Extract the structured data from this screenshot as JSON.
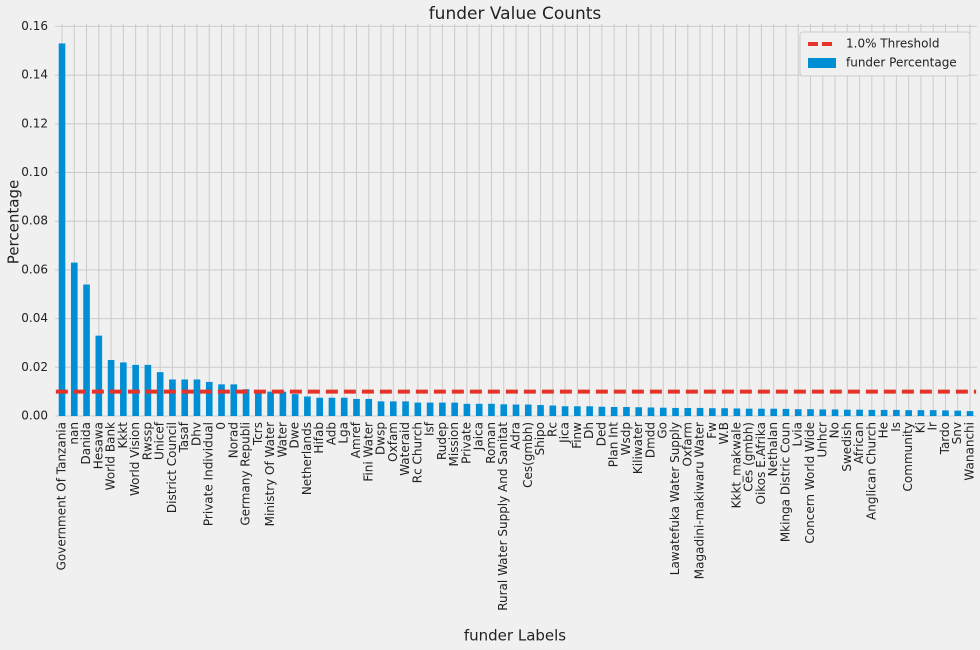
{
  "chart_data": {
    "type": "bar",
    "title": "funder Value Counts",
    "x_label": "funder Labels",
    "y_label": "Percentage",
    "categories": [
      "Government Of Tanzania",
      "nan",
      "Danida",
      "Hesawa",
      "World Bank",
      "Kkkt",
      "World Vision",
      "Rwssp",
      "Unicef",
      "District Council",
      "Tasaf",
      "Dhv",
      "Private Individual",
      "0",
      "Norad",
      "Germany Republi",
      "Tcrs",
      "Ministry Of Water",
      "Water",
      "Dwe",
      "Netherlands",
      "Hifab",
      "Adb",
      "Lga",
      "Amref",
      "Fini Water",
      "Dwsp",
      "Oxfam",
      "Wateraid",
      "Rc Church",
      "Isf",
      "Rudep",
      "Mission",
      "Private",
      "Jaica",
      "Roman",
      "Rural Water Supply And Sanitat",
      "Adra",
      "Ces(gmbh)",
      "Shipo",
      "Rc",
      "Jica",
      "Finw",
      "Dh",
      "Ded",
      "Plan Int",
      "Wsdp",
      "Kiliwater",
      "Dmdd",
      "Go",
      "Lawatefuka Water Supply",
      "Oxfarm",
      "Magadini-makiwaru Water",
      "Fw",
      "W.B",
      "Kkkt_makwale",
      "Ces (gmbh)",
      "Oikos E.Afrika",
      "Nethalan",
      "Mkinga Distric Coun",
      "Lvia",
      "Concern World Wide",
      "Unhcr",
      "No",
      "Swedish",
      "African",
      "Anglican Church",
      "He",
      "Is",
      "Community",
      "Ki",
      "Ir",
      "Tardo",
      "Snv",
      "Wananchi"
    ],
    "series": [
      {
        "name": "funder Percentage",
        "color": "#008fd5",
        "values": [
          0.153,
          0.063,
          0.054,
          0.033,
          0.023,
          0.022,
          0.021,
          0.021,
          0.018,
          0.015,
          0.015,
          0.015,
          0.014,
          0.013,
          0.013,
          0.011,
          0.01,
          0.01,
          0.01,
          0.009,
          0.008,
          0.0075,
          0.0075,
          0.0075,
          0.007,
          0.007,
          0.006,
          0.006,
          0.006,
          0.0055,
          0.0055,
          0.0055,
          0.0055,
          0.005,
          0.005,
          0.005,
          0.0048,
          0.0047,
          0.0047,
          0.0045,
          0.0043,
          0.004,
          0.004,
          0.004,
          0.0038,
          0.0037,
          0.0037,
          0.0036,
          0.0035,
          0.0034,
          0.0033,
          0.0033,
          0.0033,
          0.0032,
          0.0032,
          0.0031,
          0.003,
          0.003,
          0.003,
          0.0029,
          0.0028,
          0.0028,
          0.0027,
          0.0027,
          0.0026,
          0.0026,
          0.0025,
          0.0025,
          0.0025,
          0.0024,
          0.0024,
          0.0024,
          0.0023,
          0.0022,
          0.002
        ]
      }
    ],
    "threshold": {
      "name": "1.0% Threshold",
      "value": 0.01,
      "color": "#e5332a"
    },
    "ylim": [
      0,
      0.161
    ],
    "yticks": [
      {
        "value": 0,
        "label": "0.00"
      },
      0.02,
      0.04,
      0.06,
      0.08,
      {
        "value": 0.1,
        "label": "0.10"
      },
      0.12,
      0.14,
      0.16
    ],
    "grid": true,
    "legend": "upper right"
  }
}
